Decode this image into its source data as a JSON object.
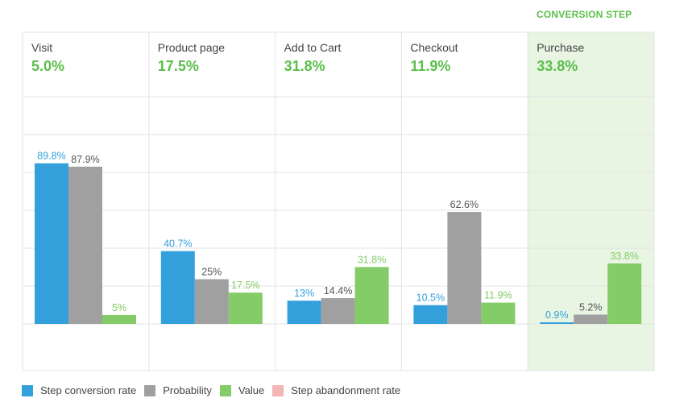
{
  "header": {
    "highlight_label": "CONVERSION STEP"
  },
  "colors": {
    "step_conversion_rate": "#34a0db",
    "probability": "#a0a0a0",
    "value": "#84cc67",
    "step_abandonment_rate": "#f2b6b6",
    "step_value_text": "#5bbf4a",
    "highlight_bg": "#e8f5e3",
    "grid": "#e3e3e3"
  },
  "chart_data": {
    "type": "bar",
    "title": "",
    "xlabel": "",
    "ylabel": "",
    "ylim": [
      0,
      100
    ],
    "highlighted_category": "Purchase",
    "categories": [
      "Visit",
      "Product page",
      "Add to Cart",
      "Checkout",
      "Purchase"
    ],
    "category_values": [
      "5.0%",
      "17.5%",
      "31.8%",
      "11.9%",
      "33.8%"
    ],
    "series": [
      {
        "name": "Step conversion rate",
        "color_key": "step_conversion_rate",
        "values": [
          89.8,
          40.7,
          13,
          10.5,
          0.9
        ],
        "labels": [
          "89.8%",
          "40.7%",
          "13%",
          "10.5%",
          "0.9%"
        ]
      },
      {
        "name": "Probability",
        "color_key": "probability",
        "values": [
          87.9,
          25,
          14.4,
          62.6,
          5.2
        ],
        "labels": [
          "87.9%",
          "25%",
          "14.4%",
          "62.6%",
          "5.2%"
        ]
      },
      {
        "name": "Value",
        "color_key": "value",
        "values": [
          5,
          17.5,
          31.8,
          11.9,
          33.8
        ],
        "labels": [
          "5%",
          "17.5%",
          "31.8%",
          "11.9%",
          "33.8%"
        ]
      }
    ],
    "legend": [
      {
        "name": "Step conversion rate",
        "color_key": "step_conversion_rate"
      },
      {
        "name": "Probability",
        "color_key": "probability"
      },
      {
        "name": "Value",
        "color_key": "value"
      },
      {
        "name": "Step abandonment rate",
        "color_key": "step_abandonment_rate"
      }
    ],
    "legend_position": "bottom-left"
  }
}
